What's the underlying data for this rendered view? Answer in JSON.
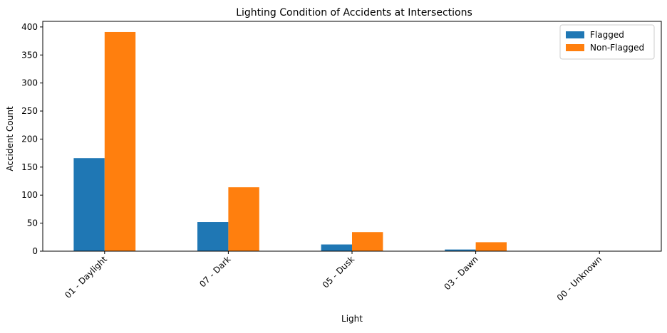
{
  "chart_data": {
    "type": "bar",
    "title": "Lighting Condition of Accidents at Intersections",
    "xlabel": "Light",
    "ylabel": "Accident Count",
    "categories": [
      "01 - Daylight",
      "07 - Dark",
      "05 - Dusk",
      "03 - Dawn",
      "00 - Unknown"
    ],
    "series": [
      {
        "name": "Flagged",
        "values": [
          166,
          52,
          12,
          3,
          0
        ],
        "color": "#1f77b4"
      },
      {
        "name": "Non-Flagged",
        "values": [
          391,
          114,
          34,
          16,
          0
        ],
        "color": "#ff7f0e"
      }
    ],
    "ylim": [
      0,
      410
    ],
    "yticks": [
      0,
      50,
      100,
      150,
      200,
      250,
      300,
      350,
      400
    ],
    "legend_position": "top-right",
    "grid": false
  }
}
